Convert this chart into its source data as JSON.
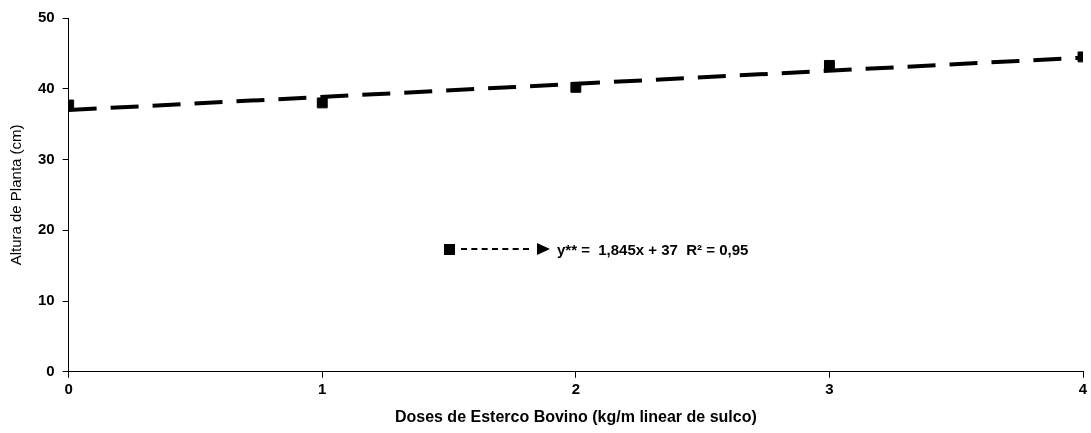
{
  "chart_data": {
    "type": "scatter",
    "xlabel": "Doses de Esterco Bovino (kg/m linear de sulco)",
    "ylabel": "Altura de Planta (cm)",
    "x": [
      0,
      1,
      2,
      3,
      4
    ],
    "series": [
      {
        "name": "y** =  1,845x + 37  R² = 0,95",
        "color": "#000000",
        "values": [
          37.7,
          38.0,
          40.2,
          43.3,
          44.5
        ],
        "marker": "square"
      },
      {
        "type": "line",
        "color": "#000000",
        "x": [
          0,
          4
        ],
        "values": [
          37,
          44.4
        ],
        "line_style": "dashed",
        "marker": "none"
      }
    ],
    "xlim": [
      0,
      4
    ],
    "xticks": [
      0,
      1,
      2,
      3,
      4
    ],
    "ylim": [
      0,
      50
    ],
    "yticks": [
      0,
      10,
      20,
      30,
      40,
      50
    ],
    "grid": false,
    "legend": "center"
  }
}
